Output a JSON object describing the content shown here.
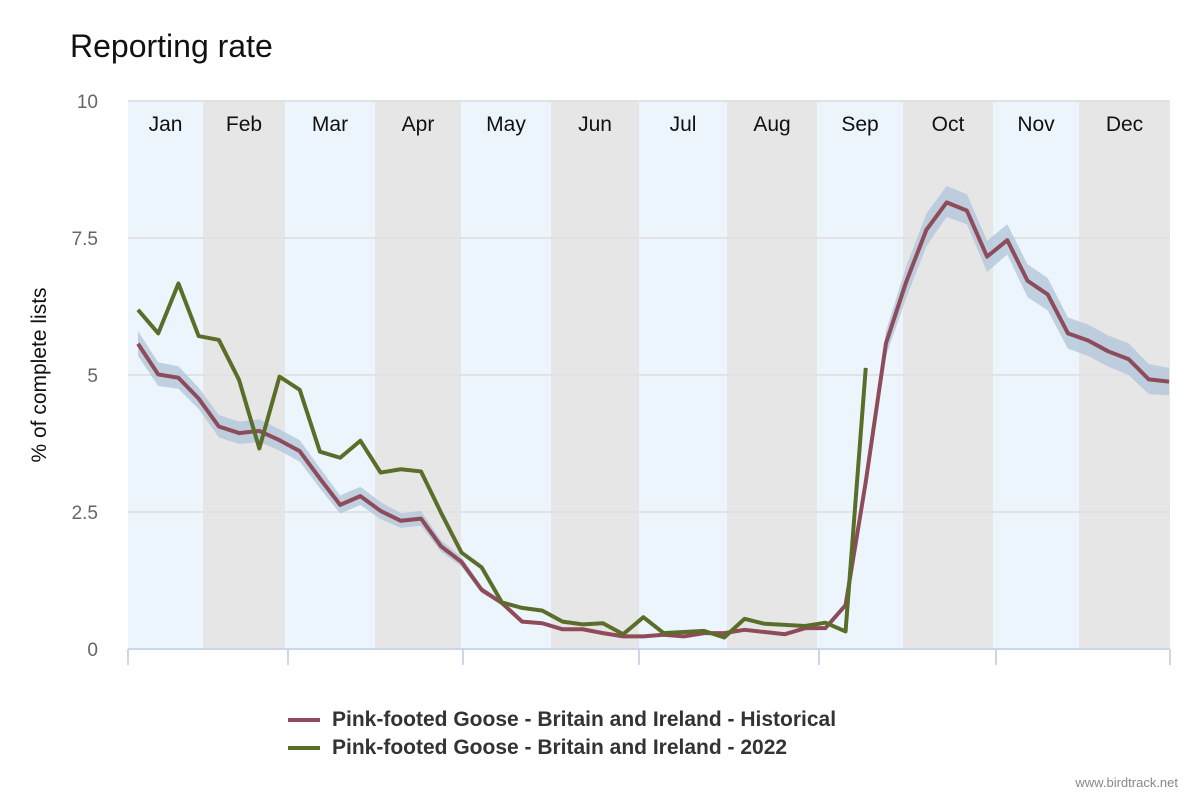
{
  "chart_data": {
    "type": "line",
    "title": "Reporting rate",
    "ylabel": "% of complete lists",
    "xlabel": "",
    "ylim": [
      0,
      10
    ],
    "yticks": [
      "0",
      "2.5",
      "5",
      "7.5",
      "10"
    ],
    "ytick_values": [
      0,
      2.5,
      5,
      7.5,
      10
    ],
    "months": [
      "Jan",
      "Feb",
      "Mar",
      "Apr",
      "May",
      "Jun",
      "Jul",
      "Aug",
      "Sep",
      "Oct",
      "Nov",
      "Dec"
    ],
    "x_unit": "week",
    "grid": true,
    "legend_position": "bottom",
    "series": [
      {
        "name": "Pink-footed Goose - Britain and Ireland - Historical",
        "color": "#8e4b5a",
        "band_color": "#b4c7db",
        "weeks": [
          1,
          2,
          3,
          4,
          5,
          6,
          7,
          8,
          9,
          10,
          11,
          12,
          13,
          14,
          15,
          16,
          17,
          18,
          19,
          20,
          21,
          22,
          23,
          24,
          25,
          26,
          27,
          28,
          29,
          30,
          31,
          32,
          33,
          34,
          35,
          36,
          37,
          38,
          39,
          40,
          41,
          42,
          43,
          44,
          45,
          46,
          47,
          48,
          49,
          50,
          51,
          52
        ],
        "values": [
          5.57,
          5.01,
          4.95,
          4.57,
          4.06,
          3.94,
          3.98,
          3.81,
          3.61,
          3.11,
          2.63,
          2.79,
          2.52,
          2.34,
          2.38,
          1.87,
          1.59,
          1.08,
          0.84,
          0.5,
          0.47,
          0.36,
          0.36,
          0.29,
          0.23,
          0.23,
          0.26,
          0.23,
          0.29,
          0.29,
          0.35,
          0.31,
          0.27,
          0.38,
          0.38,
          0.8,
          3.05,
          5.58,
          6.7,
          7.65,
          8.15,
          8.0,
          7.16,
          7.46,
          6.72,
          6.47,
          5.76,
          5.63,
          5.43,
          5.29,
          4.92,
          4.88
        ],
        "lower": [
          5.35,
          4.8,
          4.75,
          4.38,
          3.86,
          3.74,
          3.78,
          3.62,
          3.42,
          2.93,
          2.47,
          2.63,
          2.37,
          2.21,
          2.25,
          1.77,
          1.5,
          1.02,
          0.8,
          0.47,
          0.44,
          0.34,
          0.34,
          0.27,
          0.21,
          0.21,
          0.24,
          0.21,
          0.27,
          0.27,
          0.33,
          0.29,
          0.25,
          0.36,
          0.36,
          0.75,
          2.9,
          5.35,
          6.4,
          7.35,
          7.88,
          7.75,
          6.88,
          7.2,
          6.42,
          6.18,
          5.48,
          5.35,
          5.15,
          5.0,
          4.65,
          4.63
        ],
        "upper": [
          5.8,
          5.23,
          5.16,
          4.77,
          4.27,
          4.15,
          4.19,
          4.01,
          3.81,
          3.3,
          2.8,
          2.96,
          2.68,
          2.48,
          2.52,
          1.98,
          1.68,
          1.14,
          0.88,
          0.53,
          0.5,
          0.38,
          0.38,
          0.31,
          0.25,
          0.25,
          0.28,
          0.25,
          0.31,
          0.31,
          0.37,
          0.33,
          0.29,
          0.4,
          0.4,
          0.85,
          3.2,
          5.8,
          6.98,
          7.95,
          8.45,
          8.3,
          7.45,
          7.75,
          7.02,
          6.77,
          6.05,
          5.92,
          5.72,
          5.58,
          5.2,
          5.13
        ]
      },
      {
        "name": "Pink-footed Goose - Britain and Ireland - 2022",
        "color": "#5a6e2a",
        "weeks": [
          1,
          2,
          3,
          4,
          5,
          6,
          7,
          8,
          9,
          10,
          11,
          12,
          13,
          14,
          15,
          16,
          17,
          18,
          19,
          20,
          21,
          22,
          23,
          24,
          25,
          26,
          27,
          28,
          29,
          30,
          31,
          32,
          33,
          34,
          35,
          36,
          37
        ],
        "values": [
          6.19,
          5.76,
          6.67,
          5.71,
          5.64,
          4.91,
          3.66,
          4.97,
          4.73,
          3.6,
          3.49,
          3.8,
          3.22,
          3.28,
          3.24,
          2.48,
          1.76,
          1.49,
          0.85,
          0.75,
          0.7,
          0.5,
          0.45,
          0.47,
          0.27,
          0.58,
          0.29,
          0.31,
          0.33,
          0.21,
          0.55,
          0.46,
          0.44,
          0.42,
          0.48,
          0.32,
          5.13
        ]
      }
    ]
  },
  "footer": {
    "credit": "www.birdtrack.net"
  }
}
